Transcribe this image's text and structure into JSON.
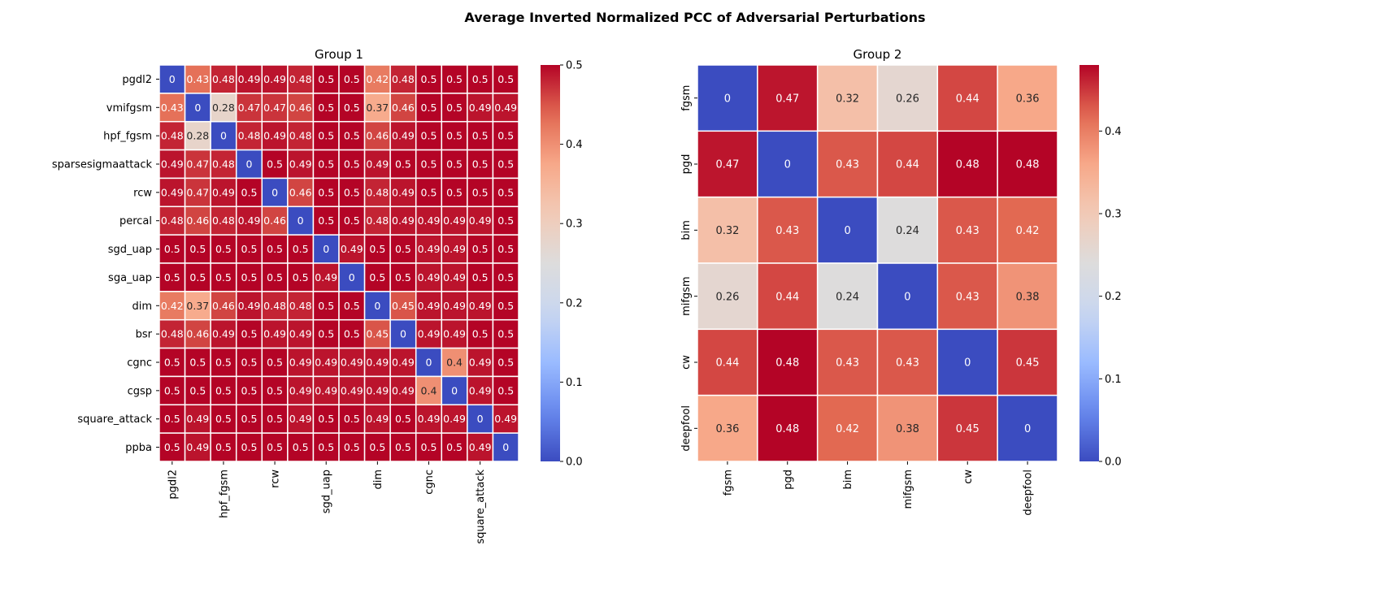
{
  "title": "Average Inverted Normalized PCC of Adversarial Perturbations",
  "colormap": {
    "name": "coolwarm",
    "stops": [
      "#3b4cc0",
      "#6788ee",
      "#9abbff",
      "#c9d7f0",
      "#dddcdc",
      "#f2cbb7",
      "#f7a889",
      "#e26952",
      "#b40426"
    ]
  },
  "chart_data": [
    {
      "type": "heatmap",
      "title": "Group 1",
      "rows": [
        "pgdl2",
        "vmifgsm",
        "hpf_fgsm",
        "sparsesigmaattack",
        "rcw",
        "percal",
        "sgd_uap",
        "sga_uap",
        "dim",
        "bsr",
        "cgnc",
        "cgsp",
        "square_attack",
        "ppba"
      ],
      "x_tick_labels": [
        "pgdl2",
        "",
        "hpf_fgsm",
        "",
        "rcw",
        "",
        "sgd_uap",
        "",
        "dim",
        "",
        "cgnc",
        "",
        "square_attack",
        ""
      ],
      "values": [
        [
          0,
          0.43,
          0.48,
          0.49,
          0.49,
          0.48,
          0.5,
          0.5,
          0.42,
          0.48,
          0.5,
          0.5,
          0.5,
          0.5
        ],
        [
          0.43,
          0,
          0.28,
          0.47,
          0.47,
          0.46,
          0.5,
          0.5,
          0.37,
          0.46,
          0.5,
          0.5,
          0.49,
          0.49
        ],
        [
          0.48,
          0.28,
          0,
          0.48,
          0.49,
          0.48,
          0.5,
          0.5,
          0.46,
          0.49,
          0.5,
          0.5,
          0.5,
          0.5
        ],
        [
          0.49,
          0.47,
          0.48,
          0,
          0.5,
          0.49,
          0.5,
          0.5,
          0.49,
          0.5,
          0.5,
          0.5,
          0.5,
          0.5
        ],
        [
          0.49,
          0.47,
          0.49,
          0.5,
          0,
          0.46,
          0.5,
          0.5,
          0.48,
          0.49,
          0.5,
          0.5,
          0.5,
          0.5
        ],
        [
          0.48,
          0.46,
          0.48,
          0.49,
          0.46,
          0,
          0.5,
          0.5,
          0.48,
          0.49,
          0.49,
          0.49,
          0.49,
          0.5
        ],
        [
          0.5,
          0.5,
          0.5,
          0.5,
          0.5,
          0.5,
          0,
          0.49,
          0.5,
          0.5,
          0.49,
          0.49,
          0.5,
          0.5
        ],
        [
          0.5,
          0.5,
          0.5,
          0.5,
          0.5,
          0.5,
          0.49,
          0,
          0.5,
          0.5,
          0.49,
          0.49,
          0.5,
          0.5
        ],
        [
          0.42,
          0.37,
          0.46,
          0.49,
          0.48,
          0.48,
          0.5,
          0.5,
          0,
          0.45,
          0.49,
          0.49,
          0.49,
          0.5
        ],
        [
          0.48,
          0.46,
          0.49,
          0.5,
          0.49,
          0.49,
          0.5,
          0.5,
          0.45,
          0,
          0.49,
          0.49,
          0.5,
          0.5
        ],
        [
          0.5,
          0.5,
          0.5,
          0.5,
          0.5,
          0.49,
          0.49,
          0.49,
          0.49,
          0.49,
          0,
          0.4,
          0.49,
          0.5
        ],
        [
          0.5,
          0.5,
          0.5,
          0.5,
          0.5,
          0.49,
          0.49,
          0.49,
          0.49,
          0.49,
          0.4,
          0,
          0.49,
          0.5
        ],
        [
          0.5,
          0.49,
          0.5,
          0.5,
          0.5,
          0.49,
          0.5,
          0.5,
          0.49,
          0.5,
          0.49,
          0.49,
          0,
          0.49
        ],
        [
          0.5,
          0.49,
          0.5,
          0.5,
          0.5,
          0.5,
          0.5,
          0.5,
          0.5,
          0.5,
          0.5,
          0.5,
          0.49,
          0
        ]
      ],
      "vmin": 0,
      "vmax": 0.5,
      "colorbar_ticks": [
        "0.0",
        "0.1",
        "0.2",
        "0.3",
        "0.4",
        "0.5"
      ]
    },
    {
      "type": "heatmap",
      "title": "Group 2",
      "rows": [
        "fgsm",
        "pgd",
        "bim",
        "mifgsm",
        "cw",
        "deepfool"
      ],
      "x_tick_labels": [
        "fgsm",
        "pgd",
        "bim",
        "mifgsm",
        "cw",
        "deepfool"
      ],
      "values": [
        [
          0,
          0.47,
          0.32,
          0.26,
          0.44,
          0.36
        ],
        [
          0.47,
          0,
          0.43,
          0.44,
          0.48,
          0.48
        ],
        [
          0.32,
          0.43,
          0,
          0.24,
          0.43,
          0.42
        ],
        [
          0.26,
          0.44,
          0.24,
          0,
          0.43,
          0.38
        ],
        [
          0.44,
          0.48,
          0.43,
          0.43,
          0,
          0.45
        ],
        [
          0.36,
          0.48,
          0.42,
          0.38,
          0.45,
          0
        ]
      ],
      "vmin": 0,
      "vmax": 0.48,
      "colorbar_ticks": [
        "0.0",
        "0.1",
        "0.2",
        "0.3",
        "0.4"
      ]
    }
  ]
}
